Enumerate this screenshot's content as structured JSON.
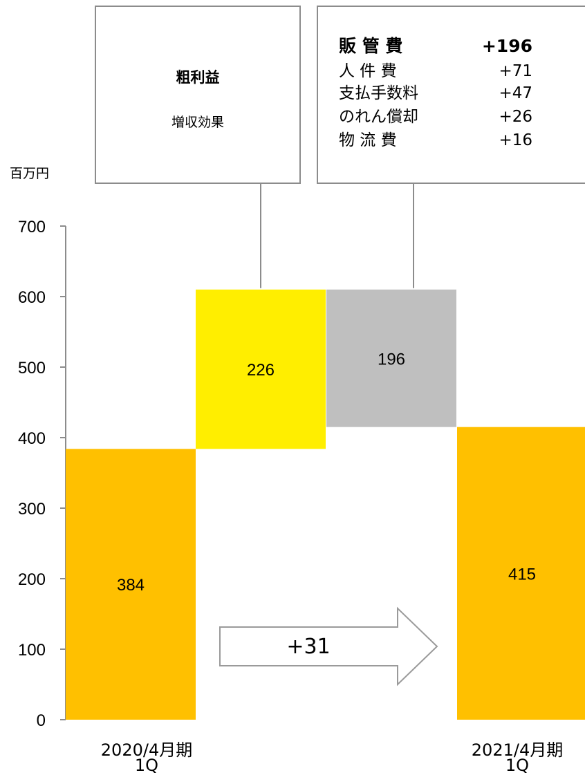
{
  "chart_data": {
    "type": "bar",
    "subtype": "waterfall",
    "unit": "百万円",
    "ylim": [
      0,
      700
    ],
    "yticks": [
      "0",
      "100",
      "200",
      "300",
      "400",
      "500",
      "600",
      "700"
    ],
    "categories": [
      {
        "line1": "2020/4月期",
        "line2": "1Q"
      },
      {
        "line1": "",
        "line2": ""
      },
      {
        "line1": "",
        "line2": ""
      },
      {
        "line1": "2021/4月期",
        "line2": "1Q"
      }
    ],
    "bars": [
      {
        "label": "384",
        "base": 0,
        "top": 384,
        "color": "#FFC000"
      },
      {
        "label": "226",
        "base": 384,
        "top": 610,
        "color": "#FFEE00"
      },
      {
        "label": "196",
        "base": 415,
        "top": 610,
        "color": "#BFBFBF"
      },
      {
        "label": "415",
        "base": 0,
        "top": 415,
        "color": "#FFC000"
      }
    ],
    "arrow_label": "+31",
    "callouts": {
      "gross_profit": {
        "title": "粗利益",
        "subtitle": "増収効果"
      },
      "sga": {
        "rows": [
          {
            "label": "販 管 費",
            "value": "+196",
            "bold": true
          },
          {
            "label": "人 件 費",
            "value": "+71"
          },
          {
            "label": "支払手数料",
            "value": "+47"
          },
          {
            "label": "のれん償却",
            "value": "+26"
          },
          {
            "label": "物 流 費",
            "value": "+16"
          }
        ]
      }
    }
  }
}
